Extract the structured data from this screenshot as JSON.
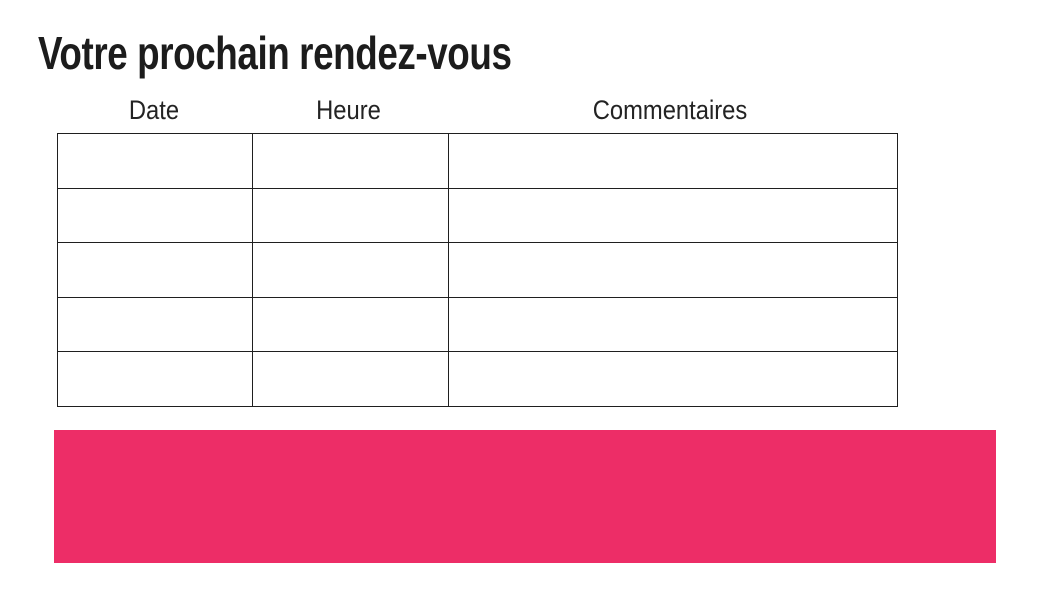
{
  "page": {
    "title": "Votre prochain rendez-vous",
    "background_color": "#ffffff"
  },
  "appointments_table": {
    "headers": [
      "Date",
      "Heure",
      "Commentaires"
    ],
    "rows": [
      [
        "",
        "",
        ""
      ],
      [
        "",
        "",
        ""
      ],
      [
        "",
        "",
        ""
      ],
      [
        "",
        "",
        ""
      ],
      [
        "",
        "",
        ""
      ]
    ],
    "border_color": "#1f1f1f"
  },
  "banner": {
    "color": "#ED2D67"
  }
}
